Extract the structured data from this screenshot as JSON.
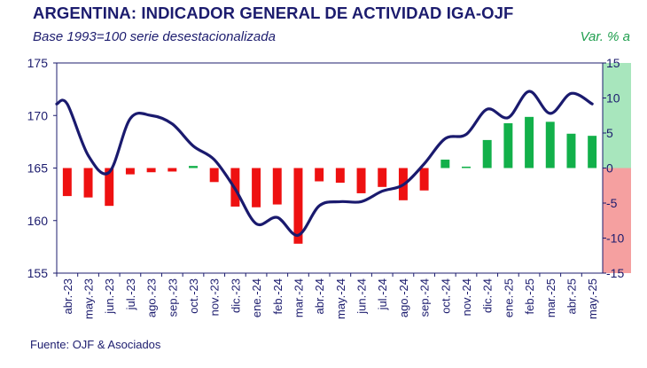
{
  "header": {
    "title": "ARGENTINA: INDICADOR GENERAL DE ACTIVIDAD IGA-OJF",
    "subtitle": "Base 1993=100 serie desestacionalizada",
    "right_unit": "Var. % a"
  },
  "footer": {
    "source": "Fuente: OJF & Asociados"
  },
  "chart_data": {
    "type": "bar+line",
    "categories": [
      "abr.-23",
      "may.-23",
      "jun.-23",
      "jul.-23",
      "ago.-23",
      "sep.-23",
      "oct.-23",
      "nov.-23",
      "dic.-23",
      "ene.-24",
      "feb.-24",
      "mar.-24",
      "abr.-24",
      "may.-24",
      "jun.-24",
      "jul.-24",
      "ago.-24",
      "sep.-24",
      "oct.-24",
      "nov.-24",
      "dic.-24",
      "ene.-25",
      "feb.-25",
      "mar.-25",
      "abr.-25",
      "may.-25"
    ],
    "left_axis": {
      "ylim": [
        155,
        175
      ],
      "ticks": [
        155,
        160,
        165,
        170,
        175
      ]
    },
    "right_axis": {
      "ylim": [
        -15,
        15
      ],
      "ticks": [
        -15,
        -10,
        -5,
        0,
        5,
        10,
        15
      ]
    },
    "series": [
      {
        "type": "line",
        "axis": "left",
        "color": "#1a1a6e",
        "values": [
          171.1,
          166.2,
          164.6,
          169.7,
          170.0,
          169.2,
          167.1,
          165.8,
          163.0,
          159.7,
          160.3,
          158.6,
          161.4,
          161.8,
          161.8,
          162.8,
          163.4,
          165.4,
          167.8,
          168.2,
          170.6,
          169.8,
          172.3,
          170.2,
          172.1,
          171.1
        ]
      },
      {
        "type": "bar",
        "axis": "right",
        "color_positive": "#12b04a",
        "color_negative": "#ee1111",
        "values": [
          -4.0,
          -4.2,
          -5.4,
          -0.9,
          -0.6,
          -0.5,
          0.3,
          -2.0,
          -5.5,
          -5.6,
          -5.2,
          -10.8,
          -1.9,
          -2.1,
          -3.6,
          -2.7,
          -4.6,
          -3.2,
          1.2,
          0.2,
          4.0,
          6.4,
          7.3,
          6.6,
          4.9,
          4.6
        ]
      }
    ],
    "background_bands": {
      "positive": "#a8e6bd",
      "negative": "#f5a0a0"
    },
    "grid": false,
    "legend": "none"
  }
}
